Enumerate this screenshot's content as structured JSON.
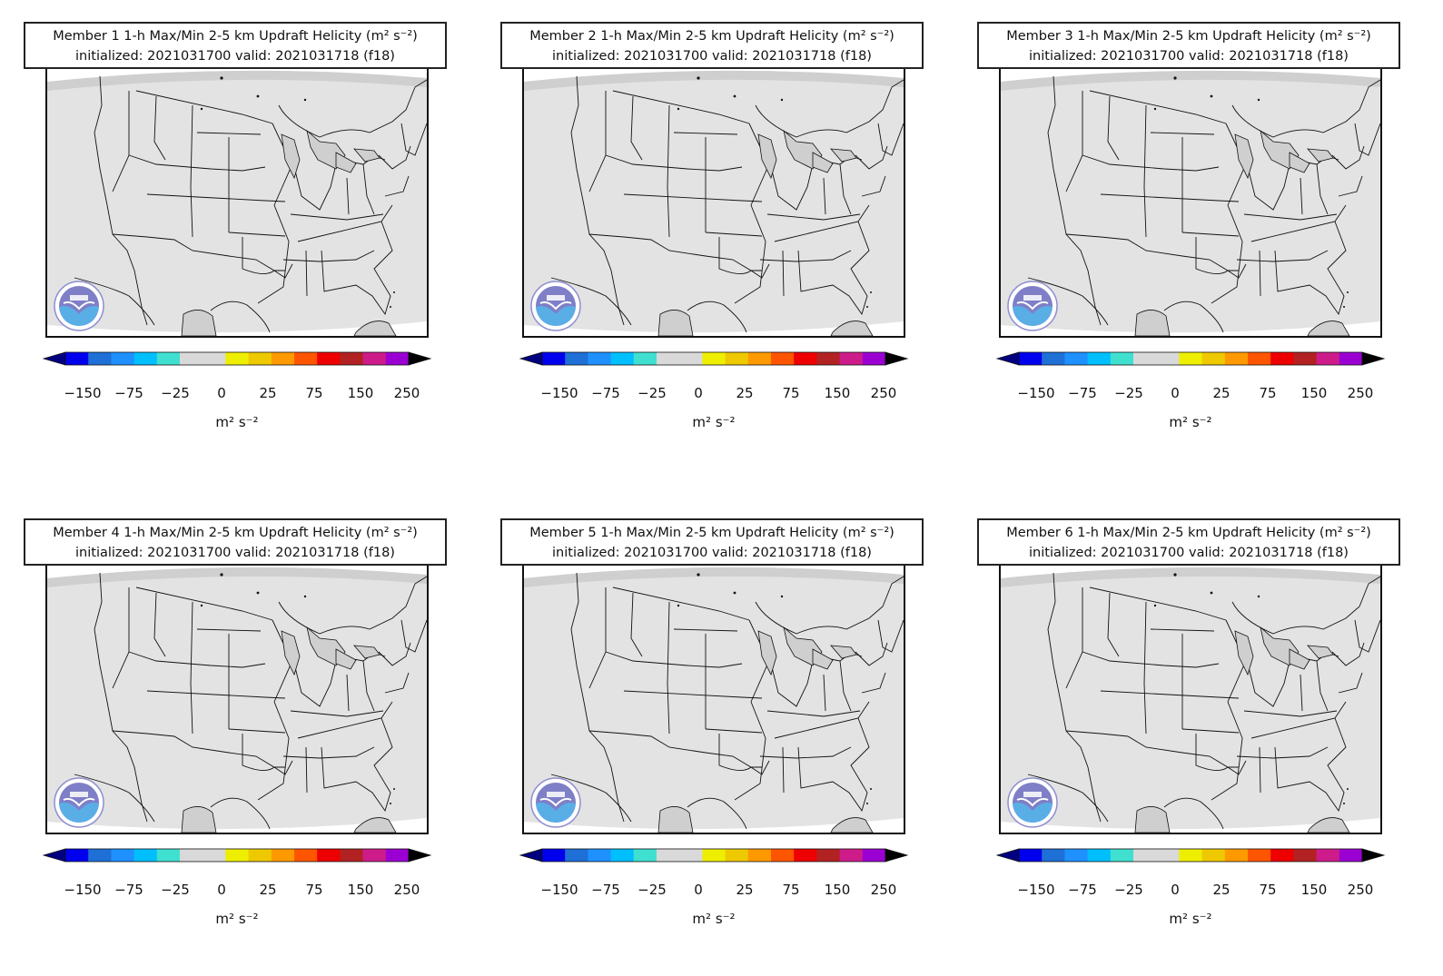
{
  "colors": {
    "map_fill": "#e3e3e3",
    "map_outside": "#ffffff",
    "ocean_strip": "#cfcfcf",
    "borders": "#111111",
    "cbar": [
      "#0000ee",
      "#1e6fd6",
      "#1e90ff",
      "#00bfff",
      "#40e0d0",
      "#d9d9d9",
      "#d9d9d9",
      "#eeee00",
      "#eec900",
      "#ff9900",
      "#ff5500",
      "#ee0000",
      "#b22222",
      "#cd1c8a",
      "#9b00d3"
    ],
    "cbar_under": "#000080",
    "cbar_over": "#000000"
  },
  "icons": {
    "logo": "noaa-logo-icon",
    "extend": "colorbar-extend-arrow-icon"
  },
  "colorbar": {
    "ticks": [
      "−150",
      "−75",
      "−25",
      "0",
      "25",
      "75",
      "150",
      "250"
    ],
    "units": "m² s⁻²"
  },
  "panels": [
    {
      "title_line1": "Member 1 1-h Max/Min 2-5 km Updraft Helicity (m² s⁻²)",
      "title_line2": "initialized: 2021031700 valid: 2021031718 (f18)"
    },
    {
      "title_line1": "Member 2 1-h Max/Min 2-5 km Updraft Helicity (m² s⁻²)",
      "title_line2": "initialized: 2021031700 valid: 2021031718 (f18)"
    },
    {
      "title_line1": "Member 3 1-h Max/Min 2-5 km Updraft Helicity (m² s⁻²)",
      "title_line2": "initialized: 2021031700 valid: 2021031718 (f18)"
    },
    {
      "title_line1": "Member 4 1-h Max/Min 2-5 km Updraft Helicity (m² s⁻²)",
      "title_line2": "initialized: 2021031700 valid: 2021031718 (f18)"
    },
    {
      "title_line1": "Member 5 1-h Max/Min 2-5 km Updraft Helicity (m² s⁻²)",
      "title_line2": "initialized: 2021031700 valid: 2021031718 (f18)"
    },
    {
      "title_line1": "Member 6 1-h Max/Min 2-5 km Updraft Helicity (m² s⁻²)",
      "title_line2": "initialized: 2021031700 valid: 2021031718 (f18)"
    }
  ]
}
